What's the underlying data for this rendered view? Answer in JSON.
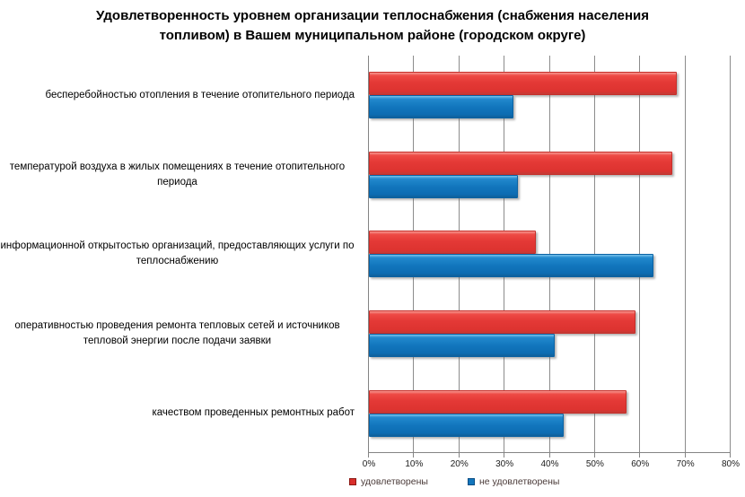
{
  "title": {
    "full": "Удовлетворенность уровнем организации теплоснабжения (снабжения населения топливом) в Вашем муниципальном районе (городском округе)",
    "lines": [
      "Удовлетворенность уровнем организации теплоснабжения (снабжения населения",
      "топливом) в Вашем муниципальном районе (городском округе)"
    ]
  },
  "chart_data": {
    "type": "bar",
    "orientation": "horizontal",
    "title": "Удовлетворенность уровнем организации теплоснабжения (снабжения населения топливом) в Вашем муниципальном районе (городском округе)",
    "categories": [
      "бесперебойностью отопления в течение  отопительного периода",
      "температурой воздуха в жилых помещениях в течение  отопительного периода",
      "информационной открытостью организаций, предоставляющих услуги по теплоснабжению",
      "оперативностью проведения  ремонта тепловых сетей и источников тепловой энергии после подачи заявки",
      "качеством проведенных ремонтных работ"
    ],
    "series": [
      {
        "key": "satisfied",
        "name": "удовлетворены",
        "color": "#e43936",
        "values": [
          68,
          67,
          37,
          59,
          57
        ]
      },
      {
        "key": "unsatisfied",
        "name": "не удовлетворены",
        "color": "#1276bd",
        "values": [
          32,
          33,
          63,
          41,
          43
        ]
      }
    ],
    "xlabel": "",
    "ylabel": "",
    "xlim": [
      0,
      80
    ],
    "x_ticks": [
      "0%",
      "10%",
      "20%",
      "30%",
      "40%",
      "50%",
      "60%",
      "70%",
      "80%"
    ],
    "grid": true,
    "legend_position": "bottom"
  },
  "colors": {
    "gridline": "#8c8c8c",
    "axis": "#848484",
    "title_text": "#000000",
    "label_text": "#000000"
  }
}
